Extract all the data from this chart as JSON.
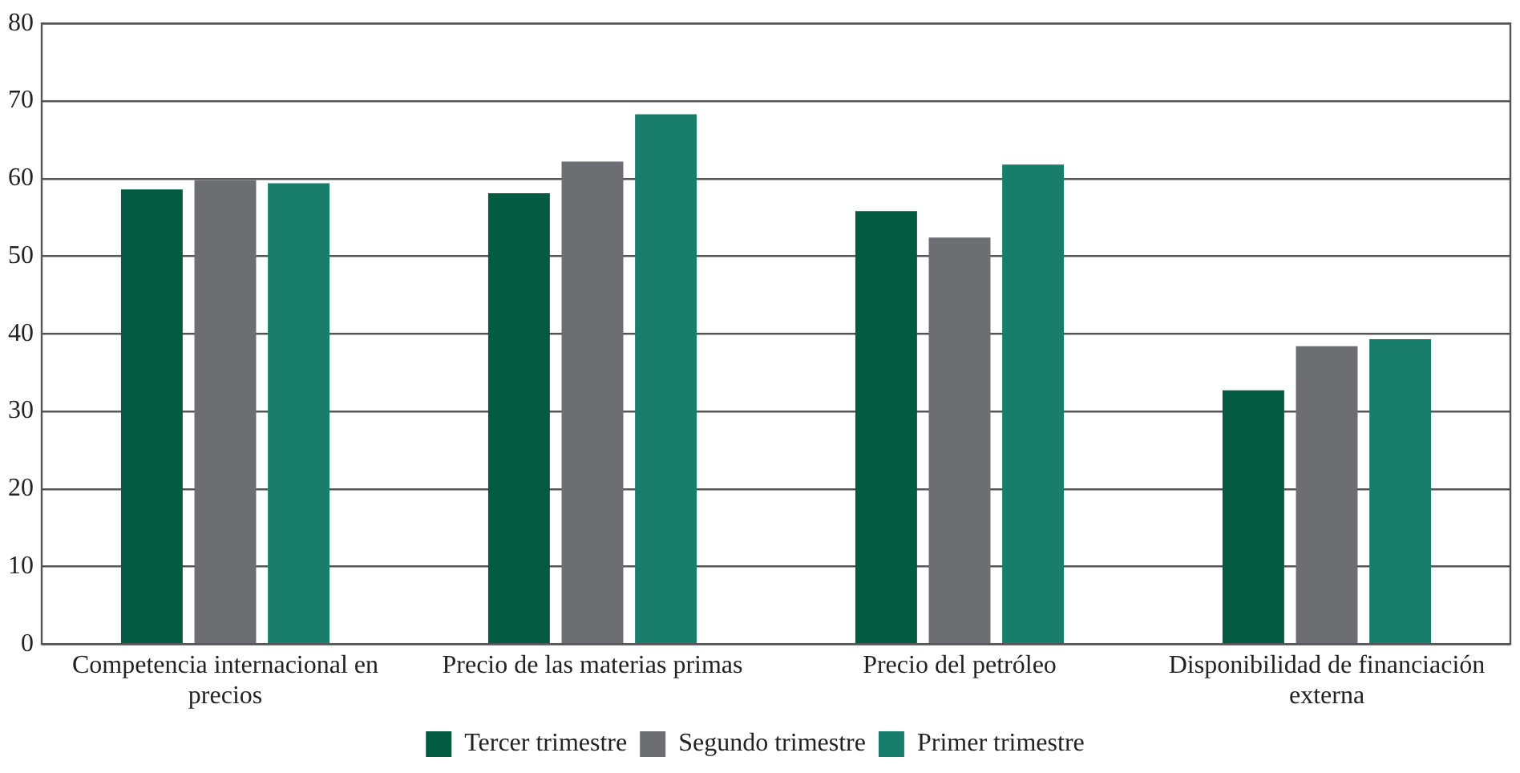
{
  "chart_data": {
    "type": "bar",
    "categories": [
      "Competencia internacional en precios",
      "Precio de las materias primas",
      "Precio del petróleo",
      "Disponibilidad de financiación externa"
    ],
    "series": [
      {
        "name": "Tercer trimestre",
        "color": "#035b42",
        "values": [
          58.6,
          58.1,
          55.8,
          32.7
        ]
      },
      {
        "name": "Segundo trimestre",
        "color": "#6d6e71",
        "values": [
          59.8,
          62.2,
          52.4,
          38.4
        ]
      },
      {
        "name": "Primer trimestre",
        "color": "#187e6b",
        "values": [
          59.4,
          68.3,
          61.8,
          39.3
        ]
      }
    ],
    "ylim": [
      0,
      80
    ],
    "yticks": [
      0,
      10,
      20,
      30,
      40,
      50,
      60,
      70,
      80
    ],
    "grid": "y",
    "legend": "bottom"
  }
}
